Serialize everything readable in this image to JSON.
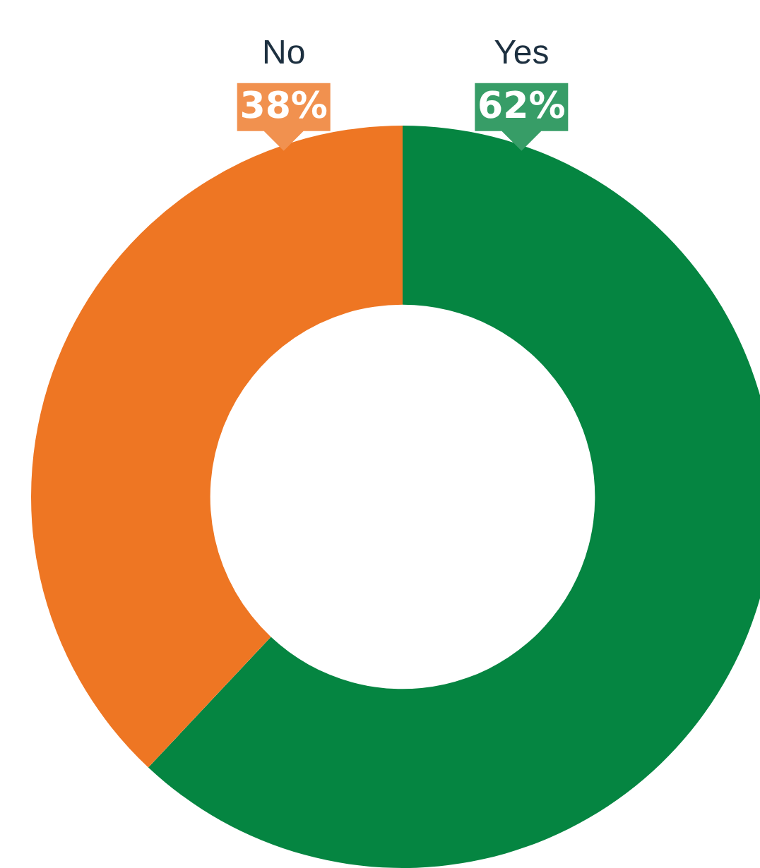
{
  "chart_data": {
    "type": "donut",
    "categories": [
      "Yes",
      "No"
    ],
    "values": [
      62,
      38
    ],
    "colors": [
      "#058541",
      "#ee7623"
    ],
    "value_labels": [
      "62%",
      "38%"
    ],
    "legend": false
  }
}
